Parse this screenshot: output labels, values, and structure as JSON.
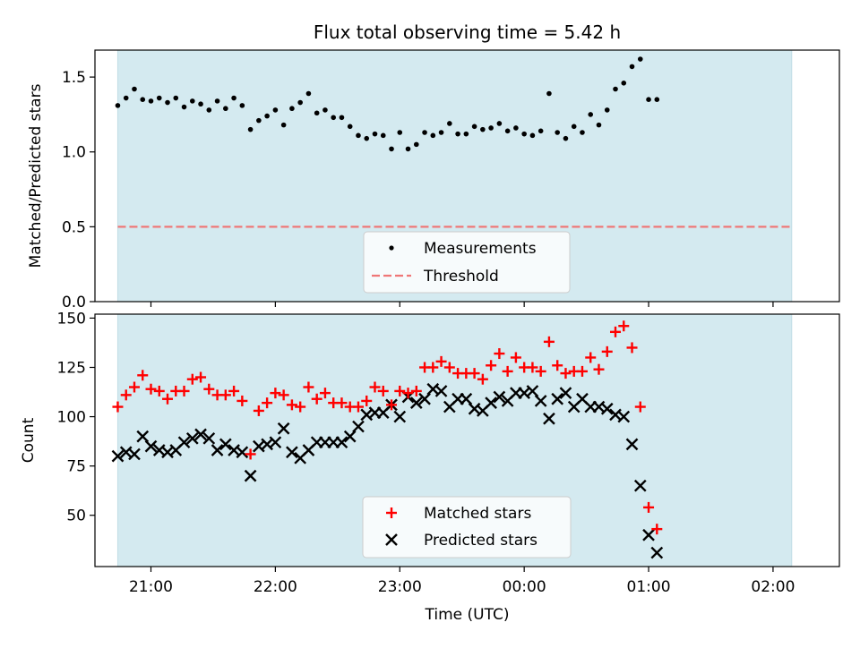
{
  "title": "Flux total observing time = 5.42 h",
  "xlabel": "Time (UTC)",
  "chart_data": [
    {
      "type": "scatter",
      "ylabel": "Matched/Predicted stars",
      "ylim": [
        0,
        1.68
      ],
      "yticks": [
        0.0,
        0.5,
        1.0,
        1.5
      ],
      "ytick_labels": [
        "0.0",
        "0.5",
        "1.0",
        "1.5"
      ],
      "xlim": [
        "20:33",
        "02:32"
      ],
      "shaded_span": [
        "20:44",
        "02:09"
      ],
      "shade_color": "#d4eaf0",
      "threshold": 0.5,
      "threshold_color": "#ef7777",
      "legend": {
        "placement": "lower center",
        "items": [
          {
            "label": "Measurements",
            "marker": "dot",
            "color": "#000000"
          },
          {
            "label": "Threshold",
            "marker": "dashed-line",
            "color": "#ef7777"
          }
        ]
      },
      "series": [
        {
          "name": "Measurements",
          "color": "#000000",
          "points": [
            [
              "20:44",
              1.31
            ],
            [
              "20:48",
              1.36
            ],
            [
              "20:52",
              1.42
            ],
            [
              "20:56",
              1.35
            ],
            [
              "21:00",
              1.34
            ],
            [
              "21:04",
              1.36
            ],
            [
              "21:08",
              1.33
            ],
            [
              "21:12",
              1.36
            ],
            [
              "21:16",
              1.3
            ],
            [
              "21:20",
              1.34
            ],
            [
              "21:24",
              1.32
            ],
            [
              "21:28",
              1.28
            ],
            [
              "21:32",
              1.34
            ],
            [
              "21:36",
              1.29
            ],
            [
              "21:40",
              1.36
            ],
            [
              "21:44",
              1.31
            ],
            [
              "21:48",
              1.15
            ],
            [
              "21:52",
              1.21
            ],
            [
              "21:56",
              1.24
            ],
            [
              "22:00",
              1.28
            ],
            [
              "22:04",
              1.18
            ],
            [
              "22:08",
              1.29
            ],
            [
              "22:12",
              1.33
            ],
            [
              "22:16",
              1.39
            ],
            [
              "22:20",
              1.26
            ],
            [
              "22:24",
              1.28
            ],
            [
              "22:28",
              1.23
            ],
            [
              "22:32",
              1.23
            ],
            [
              "22:36",
              1.17
            ],
            [
              "22:40",
              1.11
            ],
            [
              "22:44",
              1.09
            ],
            [
              "22:48",
              1.12
            ],
            [
              "22:52",
              1.11
            ],
            [
              "22:56",
              1.02
            ],
            [
              "23:00",
              1.13
            ],
            [
              "23:04",
              1.02
            ],
            [
              "23:08",
              1.05
            ],
            [
              "23:12",
              1.13
            ],
            [
              "23:16",
              1.11
            ],
            [
              "23:20",
              1.13
            ],
            [
              "23:24",
              1.19
            ],
            [
              "23:28",
              1.12
            ],
            [
              "23:32",
              1.12
            ],
            [
              "23:36",
              1.17
            ],
            [
              "23:40",
              1.15
            ],
            [
              "23:44",
              1.16
            ],
            [
              "23:48",
              1.19
            ],
            [
              "23:52",
              1.14
            ],
            [
              "23:56",
              1.16
            ],
            [
              "00:00",
              1.12
            ],
            [
              "00:04",
              1.11
            ],
            [
              "00:08",
              1.14
            ],
            [
              "00:12",
              1.39
            ],
            [
              "00:16",
              1.13
            ],
            [
              "00:20",
              1.09
            ],
            [
              "00:24",
              1.17
            ],
            [
              "00:28",
              1.13
            ],
            [
              "00:32",
              1.25
            ],
            [
              "00:36",
              1.18
            ],
            [
              "00:40",
              1.28
            ],
            [
              "00:44",
              1.42
            ],
            [
              "00:48",
              1.46
            ],
            [
              "00:52",
              1.57
            ],
            [
              "00:56",
              1.62
            ],
            [
              "01:00",
              1.35
            ],
            [
              "01:04",
              1.35
            ]
          ]
        }
      ]
    },
    {
      "type": "scatter",
      "ylabel": "Count",
      "ylim": [
        24,
        152
      ],
      "yticks": [
        50,
        75,
        100,
        125,
        150
      ],
      "ytick_labels": [
        "50",
        "75",
        "100",
        "125",
        "150"
      ],
      "xlim": [
        "20:33",
        "02:32"
      ],
      "xticks": [
        "21:00",
        "22:00",
        "23:00",
        "00:00",
        "01:00",
        "02:00"
      ],
      "xtick_labels": [
        "21:00",
        "22:00",
        "23:00",
        "00:00",
        "01:00",
        "02:00"
      ],
      "shaded_span": [
        "20:44",
        "02:09"
      ],
      "shade_color": "#d4eaf0",
      "legend": {
        "placement": "lower center",
        "items": [
          {
            "label": "Matched stars",
            "marker": "plus",
            "color": "#ff0000"
          },
          {
            "label": "Predicted stars",
            "marker": "x",
            "color": "#000000"
          }
        ]
      },
      "series": [
        {
          "name": "Matched stars",
          "marker": "plus",
          "color": "#ff0000",
          "points": [
            [
              "20:44",
              105
            ],
            [
              "20:48",
              111
            ],
            [
              "20:52",
              115
            ],
            [
              "20:56",
              121
            ],
            [
              "21:00",
              114
            ],
            [
              "21:04",
              113
            ],
            [
              "21:08",
              109
            ],
            [
              "21:12",
              113
            ],
            [
              "21:16",
              113
            ],
            [
              "21:20",
              119
            ],
            [
              "21:24",
              120
            ],
            [
              "21:28",
              114
            ],
            [
              "21:32",
              111
            ],
            [
              "21:36",
              111
            ],
            [
              "21:40",
              113
            ],
            [
              "21:44",
              108
            ],
            [
              "21:48",
              81
            ],
            [
              "21:52",
              103
            ],
            [
              "21:56",
              107
            ],
            [
              "22:00",
              112
            ],
            [
              "22:04",
              111
            ],
            [
              "22:08",
              106
            ],
            [
              "22:12",
              105
            ],
            [
              "22:16",
              115
            ],
            [
              "22:20",
              109
            ],
            [
              "22:24",
              112
            ],
            [
              "22:28",
              107
            ],
            [
              "22:32",
              107
            ],
            [
              "22:36",
              105
            ],
            [
              "22:40",
              105
            ],
            [
              "22:44",
              108
            ],
            [
              "22:48",
              115
            ],
            [
              "22:52",
              113
            ],
            [
              "22:56",
              106
            ],
            [
              "23:00",
              113
            ],
            [
              "23:04",
              112
            ],
            [
              "23:08",
              113
            ],
            [
              "23:12",
              125
            ],
            [
              "23:16",
              125
            ],
            [
              "23:20",
              128
            ],
            [
              "23:24",
              125
            ],
            [
              "23:28",
              122
            ],
            [
              "23:32",
              122
            ],
            [
              "23:36",
              122
            ],
            [
              "23:40",
              119
            ],
            [
              "23:44",
              126
            ],
            [
              "23:48",
              132
            ],
            [
              "23:52",
              123
            ],
            [
              "23:56",
              130
            ],
            [
              "00:00",
              125
            ],
            [
              "00:04",
              125
            ],
            [
              "00:08",
              123
            ],
            [
              "00:12",
              138
            ],
            [
              "00:16",
              126
            ],
            [
              "00:20",
              122
            ],
            [
              "00:24",
              123
            ],
            [
              "00:28",
              123
            ],
            [
              "00:32",
              130
            ],
            [
              "00:36",
              124
            ],
            [
              "00:40",
              133
            ],
            [
              "00:44",
              143
            ],
            [
              "00:48",
              146
            ],
            [
              "00:52",
              135
            ],
            [
              "00:56",
              105
            ],
            [
              "01:00",
              54
            ],
            [
              "01:04",
              43
            ]
          ]
        },
        {
          "name": "Predicted stars",
          "marker": "x",
          "color": "#000000",
          "points": [
            [
              "20:44",
              80
            ],
            [
              "20:48",
              82
            ],
            [
              "20:52",
              81
            ],
            [
              "20:56",
              90
            ],
            [
              "21:00",
              85
            ],
            [
              "21:04",
              83
            ],
            [
              "21:08",
              82
            ],
            [
              "21:12",
              83
            ],
            [
              "21:16",
              87
            ],
            [
              "21:20",
              89
            ],
            [
              "21:24",
              91
            ],
            [
              "21:28",
              89
            ],
            [
              "21:32",
              83
            ],
            [
              "21:36",
              86
            ],
            [
              "21:40",
              83
            ],
            [
              "21:44",
              82
            ],
            [
              "21:48",
              70
            ],
            [
              "21:52",
              85
            ],
            [
              "21:56",
              86
            ],
            [
              "22:00",
              87
            ],
            [
              "22:04",
              94
            ],
            [
              "22:08",
              82
            ],
            [
              "22:12",
              79
            ],
            [
              "22:16",
              83
            ],
            [
              "22:20",
              87
            ],
            [
              "22:24",
              87
            ],
            [
              "22:28",
              87
            ],
            [
              "22:32",
              87
            ],
            [
              "22:36",
              90
            ],
            [
              "22:40",
              95
            ],
            [
              "22:44",
              101
            ],
            [
              "22:48",
              102
            ],
            [
              "22:52",
              102
            ],
            [
              "22:56",
              106
            ],
            [
              "23:00",
              100
            ],
            [
              "23:04",
              110
            ],
            [
              "23:08",
              107
            ],
            [
              "23:12",
              109
            ],
            [
              "23:16",
              114
            ],
            [
              "23:20",
              113
            ],
            [
              "23:24",
              105
            ],
            [
              "23:28",
              109
            ],
            [
              "23:32",
              109
            ],
            [
              "23:36",
              104
            ],
            [
              "23:40",
              103
            ],
            [
              "23:44",
              107
            ],
            [
              "23:48",
              110
            ],
            [
              "23:52",
              108
            ],
            [
              "23:56",
              112
            ],
            [
              "00:00",
              112
            ],
            [
              "00:04",
              113
            ],
            [
              "00:08",
              108
            ],
            [
              "00:12",
              99
            ],
            [
              "00:16",
              109
            ],
            [
              "00:20",
              112
            ],
            [
              "00:24",
              105
            ],
            [
              "00:28",
              109
            ],
            [
              "00:32",
              105
            ],
            [
              "00:36",
              105
            ],
            [
              "00:40",
              104
            ],
            [
              "00:44",
              101
            ],
            [
              "00:48",
              100
            ],
            [
              "00:52",
              86
            ],
            [
              "00:56",
              65
            ],
            [
              "01:00",
              40
            ],
            [
              "01:04",
              31
            ]
          ]
        }
      ]
    }
  ]
}
